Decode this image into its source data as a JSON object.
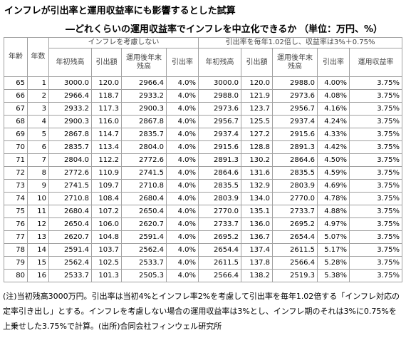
{
  "header": {
    "title": "インフレが引出率と運用収益率にも影響するとした試算",
    "subtitle": "―どれくらいの運用収益率でインフレを中立化できるか",
    "unit": "（単位：万円、%）"
  },
  "table": {
    "head": {
      "age": "年齢",
      "years": "年数",
      "group1": "インフレを考慮しない",
      "group2": "引出率を毎年1.02倍し、収益率は3%＋0.75%",
      "columns1": [
        "年初残高",
        "引出額",
        "運用後年末残高",
        "引出率"
      ],
      "columns2": [
        "年初残高",
        "引出額",
        "運用後年末残高",
        "引出率",
        "運用収益率"
      ]
    },
    "rows": [
      [
        "65",
        "1",
        "3000.0",
        "120.0",
        "2966.4",
        "4.0%",
        "3000.0",
        "120.0",
        "2988.0",
        "4.00%",
        "3.75%"
      ],
      [
        "66",
        "2",
        "2966.4",
        "118.7",
        "2933.2",
        "4.0%",
        "2988.0",
        "121.9",
        "2973.6",
        "4.08%",
        "3.75%"
      ],
      [
        "67",
        "3",
        "2933.2",
        "117.3",
        "2900.3",
        "4.0%",
        "2973.6",
        "123.7",
        "2956.7",
        "4.16%",
        "3.75%"
      ],
      [
        "68",
        "4",
        "2900.3",
        "116.0",
        "2867.8",
        "4.0%",
        "2956.7",
        "125.5",
        "2937.4",
        "4.24%",
        "3.75%"
      ],
      [
        "69",
        "5",
        "2867.8",
        "114.7",
        "2835.7",
        "4.0%",
        "2937.4",
        "127.2",
        "2915.6",
        "4.33%",
        "3.75%"
      ],
      [
        "70",
        "6",
        "2835.7",
        "113.4",
        "2804.0",
        "4.0%",
        "2915.6",
        "128.8",
        "2891.3",
        "4.42%",
        "3.75%"
      ],
      [
        "71",
        "7",
        "2804.0",
        "112.2",
        "2772.6",
        "4.0%",
        "2891.3",
        "130.2",
        "2864.6",
        "4.50%",
        "3.75%"
      ],
      [
        "72",
        "8",
        "2772.6",
        "110.9",
        "2741.5",
        "4.0%",
        "2864.6",
        "131.6",
        "2835.5",
        "4.59%",
        "3.75%"
      ],
      [
        "73",
        "9",
        "2741.5",
        "109.7",
        "2710.8",
        "4.0%",
        "2835.5",
        "132.9",
        "2803.9",
        "4.69%",
        "3.75%"
      ],
      [
        "74",
        "10",
        "2710.8",
        "108.4",
        "2680.4",
        "4.0%",
        "2803.9",
        "134.0",
        "2770.0",
        "4.78%",
        "3.75%"
      ],
      [
        "75",
        "11",
        "2680.4",
        "107.2",
        "2650.4",
        "4.0%",
        "2770.0",
        "135.1",
        "2733.7",
        "4.88%",
        "3.75%"
      ],
      [
        "76",
        "12",
        "2650.4",
        "106.0",
        "2620.7",
        "4.0%",
        "2733.7",
        "136.0",
        "2695.2",
        "4.97%",
        "3.75%"
      ],
      [
        "77",
        "13",
        "2620.7",
        "104.8",
        "2591.4",
        "4.0%",
        "2695.2",
        "136.7",
        "2654.4",
        "5.07%",
        "3.75%"
      ],
      [
        "78",
        "14",
        "2591.4",
        "103.7",
        "2562.4",
        "4.0%",
        "2654.4",
        "137.4",
        "2611.5",
        "5.17%",
        "3.75%"
      ],
      [
        "79",
        "15",
        "2562.4",
        "102.5",
        "2533.7",
        "4.0%",
        "2611.5",
        "137.8",
        "2566.4",
        "5.28%",
        "3.75%"
      ],
      [
        "80",
        "16",
        "2533.7",
        "101.3",
        "2505.3",
        "4.0%",
        "2566.4",
        "138.2",
        "2519.3",
        "5.38%",
        "3.75%"
      ]
    ]
  },
  "note": "(注)当初残高3000万円。引出率は当初4%とインフレ率2%を考慮して引出率を毎年1.02倍する「インフレ対応の定率引き出し」とする。インフレを考慮しない場合の運用収益率は3%とし、インフレ期のそれは3%に0.75%を上乗せした3.75%で計算。(出所)合同会社フィンウェル研究所"
}
